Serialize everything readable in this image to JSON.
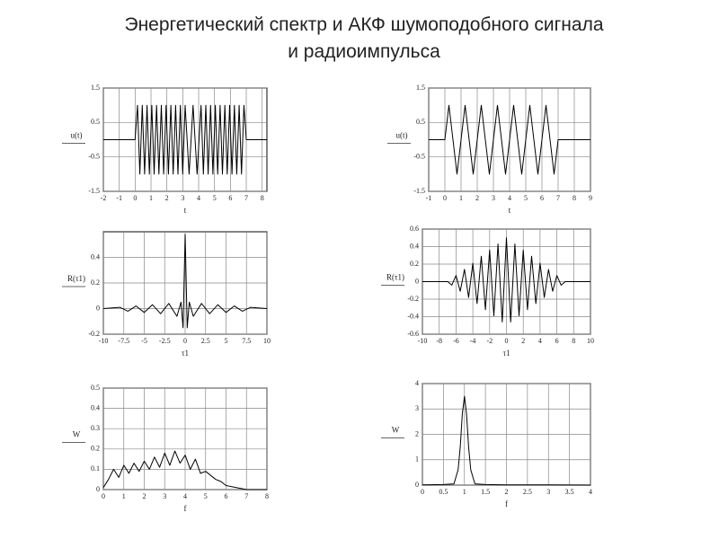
{
  "title": [
    "Энергетический спектр и АКФ шумоподобного сигнала",
    "и радиоимпульса"
  ],
  "chart_data": [
    {
      "type": "line",
      "xlabel": "t",
      "ylabel": "u(t)",
      "xlim": [
        -2,
        8.3
      ],
      "ylim": [
        -1.5,
        1.5
      ],
      "xticks": [
        -2,
        -1,
        0,
        1,
        2,
        3,
        4,
        5,
        6,
        7,
        8
      ],
      "yticks": [
        -1.5,
        -0.5,
        0.5,
        1.5
      ],
      "grid": true,
      "color": "#000000",
      "x": [
        -2,
        0,
        0.15,
        0.3,
        0.45,
        0.6,
        0.75,
        0.9,
        1.05,
        1.2,
        1.35,
        1.5,
        1.65,
        1.8,
        1.95,
        2.1,
        2.25,
        2.4,
        2.55,
        2.7,
        2.85,
        3.0,
        3.15,
        3.4,
        3.65,
        3.9,
        4.15,
        4.3,
        4.45,
        4.6,
        4.75,
        4.9,
        5.05,
        5.2,
        5.35,
        5.5,
        5.65,
        5.8,
        5.95,
        6.1,
        6.25,
        6.4,
        6.55,
        6.7,
        6.85,
        7.0,
        8.3
      ],
      "values": [
        0,
        0,
        1,
        -1,
        1,
        -1,
        1,
        -1,
        1,
        -1,
        1,
        -1,
        1,
        -1,
        1,
        -1,
        1,
        -1,
        1,
        -1,
        1,
        -1,
        1,
        -1,
        1,
        -1,
        1,
        -1,
        1,
        -1,
        1,
        -1,
        1,
        -1,
        1,
        -1,
        1,
        -1,
        1,
        -1,
        1,
        -1,
        1,
        -1,
        1,
        0,
        0
      ]
    },
    {
      "type": "line",
      "xlabel": "t",
      "ylabel": "u(t)",
      "xlim": [
        -1,
        9
      ],
      "ylim": [
        -1.5,
        1.5
      ],
      "xticks": [
        -1,
        0,
        1,
        2,
        3,
        4,
        5,
        6,
        7,
        8,
        9
      ],
      "yticks": [
        -1.5,
        -0.5,
        0.5,
        1.5
      ],
      "grid": true,
      "color": "#000000",
      "x": [
        -1,
        0,
        0.25,
        0.5,
        0.75,
        1,
        1.25,
        1.5,
        1.75,
        2,
        2.25,
        2.5,
        2.75,
        3,
        3.25,
        3.5,
        3.75,
        4,
        4.25,
        4.5,
        4.75,
        5,
        5.25,
        5.5,
        5.75,
        6,
        6.25,
        6.5,
        6.75,
        7,
        9
      ],
      "values": [
        0,
        0,
        1,
        0,
        -1,
        0,
        1,
        0,
        -1,
        0,
        1,
        0,
        -1,
        0,
        1,
        0,
        -1,
        0,
        1,
        0,
        -1,
        0,
        1,
        0,
        -1,
        0,
        1,
        0,
        -1,
        0,
        0
      ]
    },
    {
      "type": "line",
      "xlabel": "τ1",
      "ylabel": "R(τ1)",
      "xlim": [
        -10,
        10
      ],
      "ylim": [
        -0.2,
        0.6
      ],
      "xticks": [
        -10,
        -7.5,
        -5,
        -2.5,
        0,
        2.5,
        5,
        7.5,
        10
      ],
      "yticks": [
        -0.2,
        0,
        0.2,
        0.4
      ],
      "grid": true,
      "color": "#000000",
      "x": [
        -10,
        -8,
        -7,
        -6,
        -5,
        -4,
        -3,
        -2,
        -1,
        -0.5,
        -0.25,
        0,
        0.25,
        0.5,
        1,
        2,
        3,
        4,
        5,
        6,
        7,
        8,
        10
      ],
      "values": [
        0,
        0.01,
        -0.02,
        0.02,
        -0.03,
        0.03,
        -0.04,
        0.04,
        -0.06,
        0.05,
        -0.15,
        0.58,
        -0.15,
        0.05,
        -0.06,
        0.04,
        -0.04,
        0.03,
        -0.03,
        0.02,
        -0.02,
        0.01,
        0
      ]
    },
    {
      "type": "line",
      "xlabel": "τ1",
      "ylabel": "R(τ1)",
      "xlim": [
        -10,
        10
      ],
      "ylim": [
        -0.6,
        0.6
      ],
      "xticks": [
        -10,
        -8,
        -6,
        -4,
        -2,
        0,
        2,
        4,
        6,
        8,
        10
      ],
      "yticks": [
        -0.6,
        -0.4,
        -0.2,
        0,
        0.2,
        0.4,
        0.6
      ],
      "grid": true,
      "color": "#000000",
      "x": [
        -10,
        -7,
        -6.5,
        -6,
        -5.5,
        -5,
        -4.5,
        -4,
        -3.5,
        -3,
        -2.5,
        -2,
        -1.5,
        -1,
        -0.5,
        0,
        0.5,
        1,
        1.5,
        2,
        2.5,
        3,
        3.5,
        4,
        4.5,
        5,
        5.5,
        6,
        6.5,
        7,
        10
      ],
      "values": [
        0,
        0,
        -0.04,
        0.07,
        -0.11,
        0.14,
        -0.18,
        0.21,
        -0.25,
        0.29,
        -0.32,
        0.36,
        -0.39,
        0.43,
        -0.46,
        0.5,
        -0.46,
        0.43,
        -0.39,
        0.36,
        -0.32,
        0.29,
        -0.25,
        0.21,
        -0.18,
        0.14,
        -0.11,
        0.07,
        -0.04,
        0,
        0
      ]
    },
    {
      "type": "line",
      "xlabel": "f",
      "ylabel": "W",
      "xlim": [
        0,
        8
      ],
      "ylim": [
        0,
        0.5
      ],
      "xticks": [
        0,
        1,
        2,
        3,
        4,
        5,
        6,
        7,
        8
      ],
      "yticks": [
        0,
        0.1,
        0.2,
        0.3,
        0.4,
        0.5
      ],
      "grid": true,
      "color": "#000000",
      "x": [
        0,
        0.25,
        0.5,
        0.75,
        1,
        1.25,
        1.5,
        1.75,
        2,
        2.25,
        2.5,
        2.75,
        3,
        3.25,
        3.5,
        3.75,
        4,
        4.25,
        4.5,
        4.75,
        5,
        5.25,
        5.5,
        5.75,
        6,
        6.5,
        7,
        8
      ],
      "values": [
        0.01,
        0.05,
        0.1,
        0.06,
        0.12,
        0.08,
        0.13,
        0.09,
        0.14,
        0.1,
        0.16,
        0.11,
        0.18,
        0.12,
        0.19,
        0.13,
        0.17,
        0.1,
        0.15,
        0.08,
        0.09,
        0.07,
        0.05,
        0.04,
        0.02,
        0.01,
        0,
        0
      ]
    },
    {
      "type": "line",
      "xlabel": "f",
      "ylabel": "W",
      "xlim": [
        0,
        4
      ],
      "ylim": [
        0,
        4
      ],
      "xticks": [
        0,
        0.5,
        1,
        1.5,
        2,
        2.5,
        3,
        3.5,
        4
      ],
      "yticks": [
        0,
        1,
        2,
        3,
        4
      ],
      "grid": true,
      "color": "#000000",
      "x": [
        0,
        0.5,
        0.75,
        0.85,
        0.9,
        0.95,
        1,
        1.05,
        1.1,
        1.15,
        1.25,
        1.5,
        2,
        3,
        4
      ],
      "values": [
        0.01,
        0.02,
        0.05,
        0.6,
        1.5,
        2.8,
        3.5,
        2.8,
        1.5,
        0.6,
        0.05,
        0.02,
        0.01,
        0.01,
        0
      ]
    }
  ]
}
